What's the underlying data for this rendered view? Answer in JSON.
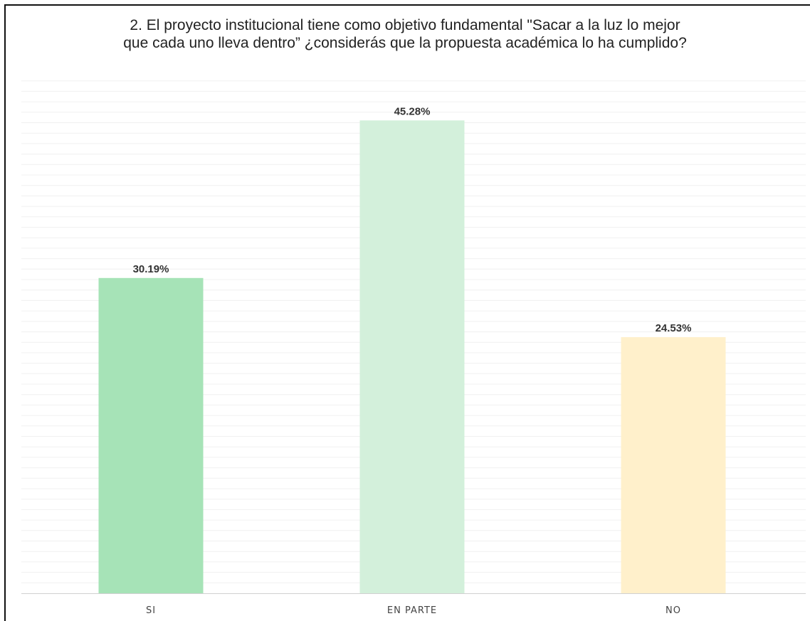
{
  "chart_data": {
    "type": "bar",
    "title": "2. El proyecto institucional tiene como objetivo fundamental \"Sacar a la luz lo mejor\nque cada uno lleva dentro” ¿considerás que la propuesta académica lo ha cumplido?",
    "categories": [
      "SI",
      "EN PARTE",
      "NO"
    ],
    "values": [
      30.19,
      45.28,
      24.53
    ],
    "data_labels": [
      "30.19%",
      "45.28%",
      "24.53%"
    ],
    "colors": [
      "#a6e3b7",
      "#d3f0db",
      "#fff0cb"
    ],
    "ylim": [
      0,
      50
    ],
    "grid": true,
    "legend": "none",
    "xlabel": "",
    "ylabel": ""
  }
}
